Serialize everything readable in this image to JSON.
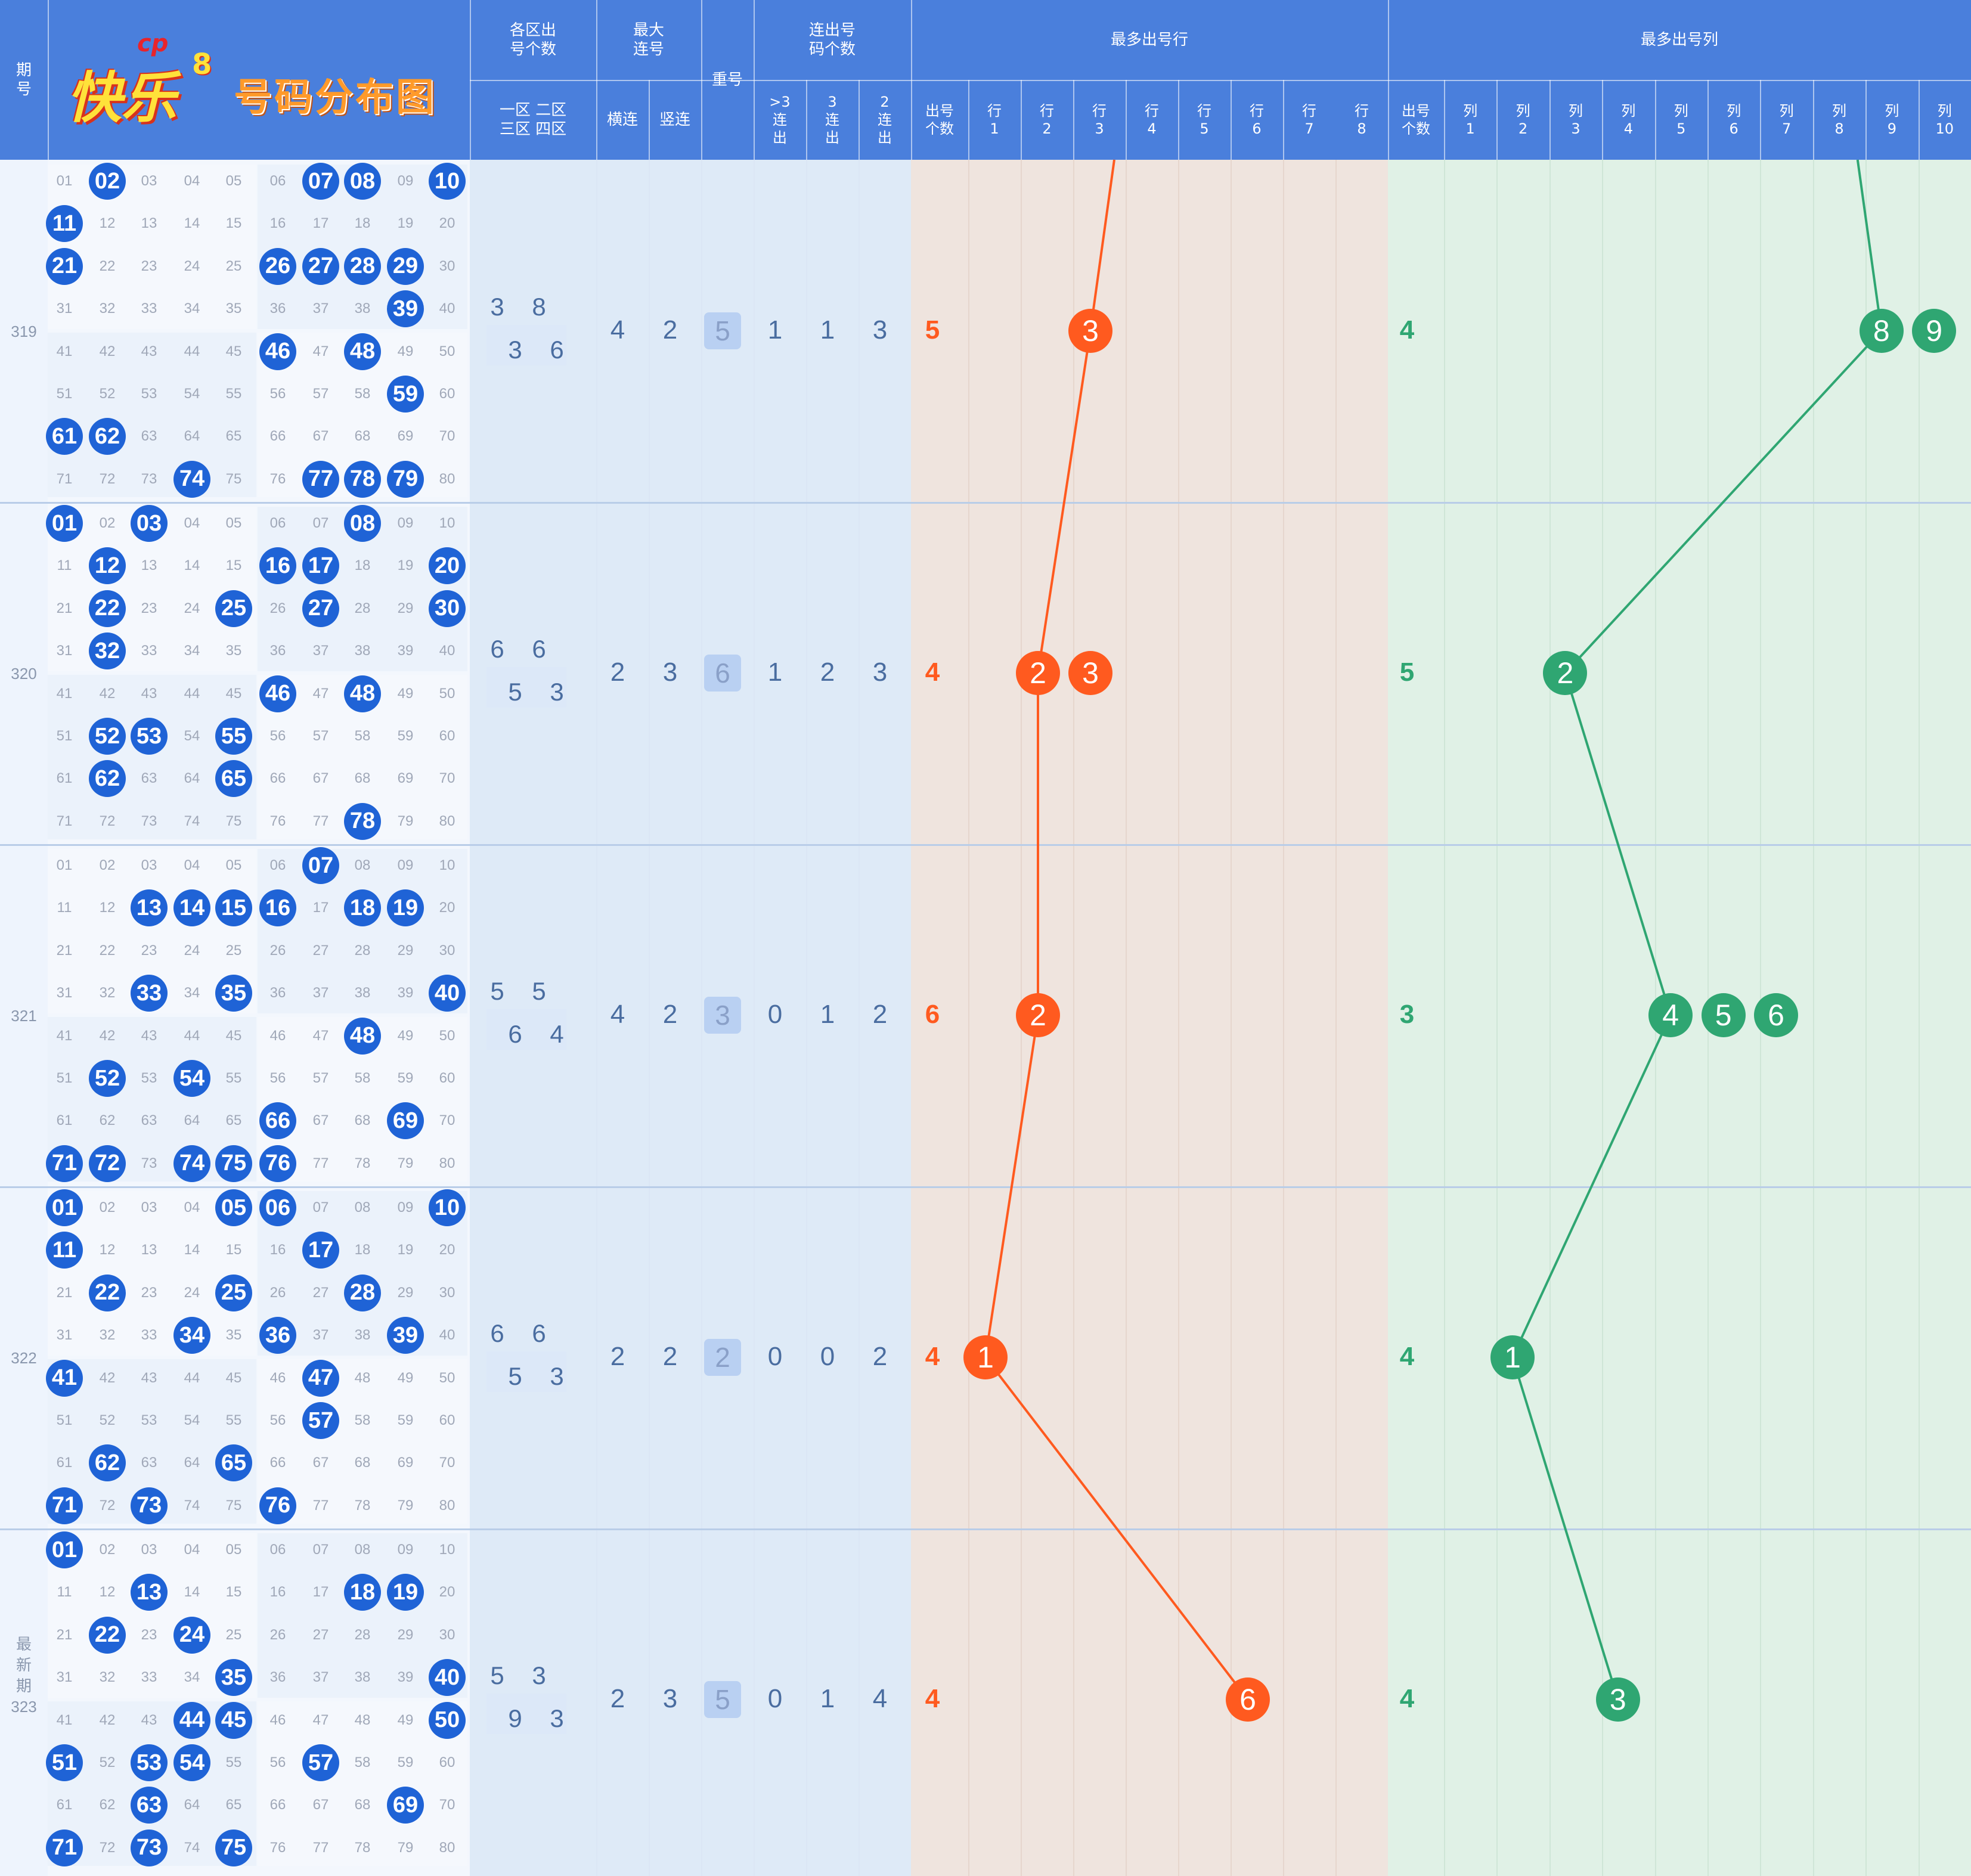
{
  "header": {
    "logo_main": "快乐",
    "logo_mark": "cp",
    "logo_digit": "8",
    "logo_sub": "号码分布图",
    "period": "期\n号",
    "zones_title": "各区出\n号个数",
    "zones_sub": "一区 二区\n三区 四区",
    "max_title": "最大\n连号",
    "max_h": "横连",
    "max_v": "竖连",
    "repeat": "重号",
    "consec_title": "连出号\n码个数",
    "consec_cols": [
      "&gt;3\n连\n出",
      "3\n连\n出",
      "2\n连\n出"
    ],
    "row_title": "最多出号行",
    "row_count": "出号\n个数",
    "row_cols": [
      "行\n1",
      "行\n2",
      "行\n3",
      "行\n4",
      "行\n5",
      "行\n6",
      "行\n7",
      "行\n8"
    ],
    "col_title": "最多出号列",
    "col_count": "出号\n个数",
    "col_cols": [
      "列\n1",
      "列\n2",
      "列\n3",
      "列\n4",
      "列\n5",
      "列\n6",
      "列\n7",
      "列\n8",
      "列\n9",
      "列\n10"
    ]
  },
  "colors": {
    "header": "#4a7fdc",
    "ball": "#1f63d6",
    "row_accent": "#ff5a1f",
    "col_accent": "#2fa672"
  },
  "rows": [
    {
      "period": "319",
      "drawn": [
        2,
        7,
        8,
        10,
        11,
        21,
        26,
        27,
        28,
        29,
        39,
        46,
        48,
        59,
        61,
        62,
        74,
        77,
        78,
        79
      ],
      "zones": [
        "3",
        "8",
        "3",
        "6"
      ],
      "max_h": "4",
      "max_v": "2",
      "repeat": "5",
      "c3plus": "1",
      "c3": "1",
      "c2": "3",
      "row_count": "5",
      "max_rows": [
        3
      ],
      "col_count": "4",
      "max_cols": [
        8,
        9
      ]
    },
    {
      "period": "320",
      "drawn": [
        1,
        3,
        8,
        12,
        16,
        17,
        20,
        22,
        25,
        27,
        30,
        32,
        46,
        48,
        52,
        53,
        55,
        62,
        65,
        78
      ],
      "zones": [
        "6",
        "6",
        "5",
        "3"
      ],
      "max_h": "2",
      "max_v": "3",
      "repeat": "6",
      "c3plus": "1",
      "c3": "2",
      "c2": "3",
      "row_count": "4",
      "max_rows": [
        2,
        3
      ],
      "col_count": "5",
      "max_cols": [
        2
      ]
    },
    {
      "period": "321",
      "drawn": [
        7,
        13,
        14,
        15,
        16,
        18,
        19,
        33,
        35,
        40,
        48,
        52,
        54,
        66,
        69,
        71,
        72,
        74,
        75,
        76
      ],
      "zones": [
        "5",
        "5",
        "6",
        "4"
      ],
      "max_h": "4",
      "max_v": "2",
      "repeat": "3",
      "c3plus": "0",
      "c3": "1",
      "c2": "2",
      "row_count": "6",
      "max_rows": [
        2
      ],
      "col_count": "3",
      "max_cols": [
        4,
        5,
        6
      ]
    },
    {
      "period": "322",
      "drawn": [
        1,
        5,
        6,
        10,
        11,
        17,
        22,
        25,
        28,
        34,
        36,
        39,
        41,
        47,
        57,
        62,
        65,
        71,
        73,
        76
      ],
      "zones": [
        "6",
        "6",
        "5",
        "3"
      ],
      "max_h": "2",
      "max_v": "2",
      "repeat": "2",
      "c3plus": "0",
      "c3": "0",
      "c2": "2",
      "row_count": "4",
      "max_rows": [
        1
      ],
      "col_count": "4",
      "max_cols": [
        1
      ]
    },
    {
      "period": "最\n新\n期\n323",
      "drawn": [
        1,
        13,
        18,
        19,
        22,
        24,
        35,
        40,
        44,
        45,
        50,
        51,
        53,
        54,
        57,
        63,
        69,
        71,
        73,
        75
      ],
      "zones": [
        "5",
        "3",
        "9",
        "3"
      ],
      "max_h": "2",
      "max_v": "3",
      "repeat": "5",
      "c3plus": "0",
      "c3": "1",
      "c2": "4",
      "row_count": "4",
      "max_rows": [
        6
      ],
      "col_count": "4",
      "max_cols": [
        3
      ]
    }
  ]
}
